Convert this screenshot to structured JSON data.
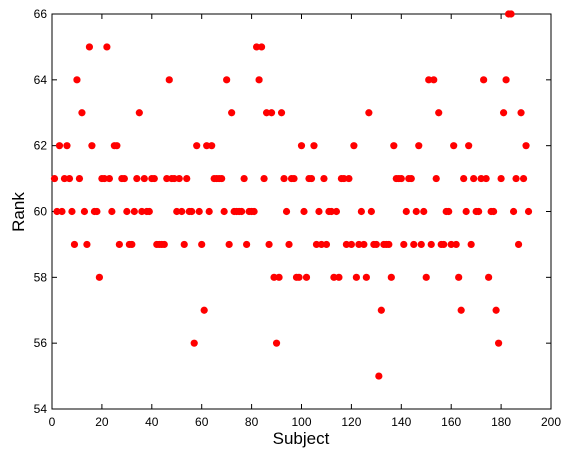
{
  "chart_data": {
    "type": "scatter",
    "x_label": "Subject",
    "y_label": "Rank",
    "color": "#ff0000",
    "x": [
      1,
      2,
      3,
      4,
      5,
      6,
      7,
      8,
      9,
      10,
      11,
      12,
      13,
      14,
      15,
      16,
      17,
      18,
      19,
      20,
      21,
      22,
      23,
      24,
      25,
      26,
      27,
      28,
      29,
      30,
      31,
      32,
      33,
      34,
      35,
      36,
      37,
      38,
      39,
      40,
      41,
      42,
      43,
      44,
      45,
      46,
      47,
      48,
      49,
      50,
      51,
      52,
      53,
      54,
      55,
      56,
      57,
      58,
      59,
      60,
      61,
      62,
      63,
      64,
      65,
      66,
      67,
      68,
      69,
      70,
      71,
      72,
      73,
      74,
      75,
      76,
      77,
      78,
      79,
      80,
      81,
      82,
      83,
      84,
      85,
      86,
      87,
      88,
      89,
      90,
      91,
      92,
      93,
      94,
      95,
      96,
      97,
      98,
      99,
      100,
      101,
      102,
      103,
      104,
      105,
      106,
      107,
      108,
      109,
      110,
      111,
      112,
      113,
      114,
      115,
      116,
      117,
      118,
      119,
      120,
      121,
      122,
      123,
      124,
      125,
      126,
      127,
      128,
      129,
      130,
      131,
      132,
      133,
      134,
      135,
      136,
      137,
      138,
      139,
      140,
      141,
      142,
      143,
      144,
      145,
      146,
      147,
      148,
      149,
      150,
      151,
      152,
      153,
      154,
      155,
      156,
      157,
      158,
      159,
      160,
      161,
      162,
      163,
      164,
      165,
      166,
      167,
      168,
      169,
      170,
      171,
      172,
      173,
      174,
      175,
      176,
      177,
      178,
      179,
      180,
      181,
      182,
      183,
      184,
      185,
      186,
      187,
      188,
      189,
      190,
      191
    ],
    "values": [
      61,
      60,
      62,
      60,
      61,
      62,
      61,
      60,
      59,
      64,
      61,
      63,
      60,
      59,
      65,
      62,
      60,
      60,
      58,
      61,
      61,
      65,
      61,
      60,
      62,
      62,
      59,
      61,
      61,
      60,
      59,
      59,
      60,
      61,
      63,
      60,
      61,
      60,
      60,
      61,
      61,
      59,
      59,
      59,
      59,
      61,
      64,
      61,
      61,
      60,
      61,
      60,
      59,
      61,
      60,
      60,
      56,
      62,
      60,
      59,
      57,
      62,
      60,
      62,
      61,
      61,
      61,
      61,
      60,
      64,
      59,
      63,
      60,
      60,
      60,
      60,
      61,
      59,
      60,
      60,
      60,
      65,
      64,
      65,
      61,
      63,
      59,
      63,
      58,
      56,
      58,
      63,
      61,
      60,
      59,
      61,
      61,
      58,
      58,
      62,
      60,
      58,
      61,
      61,
      62,
      59,
      60,
      59,
      61,
      59,
      60,
      60,
      58,
      60,
      58,
      61,
      61,
      59,
      61,
      59,
      62,
      58,
      59,
      60,
      59,
      58,
      63,
      60,
      59,
      59,
      55,
      57,
      59,
      59,
      59,
      58,
      62,
      61,
      61,
      61,
      59,
      60,
      61,
      61,
      59,
      60,
      62,
      59,
      60,
      58,
      64,
      59,
      64,
      61,
      63,
      59,
      59,
      60,
      60,
      59,
      62,
      59,
      58,
      57,
      61,
      60,
      62,
      59,
      61,
      60,
      60,
      61,
      64,
      61,
      58,
      60,
      60,
      57,
      56,
      61,
      63,
      64,
      66,
      66,
      60,
      61,
      59,
      63,
      61,
      62,
      60
    ],
    "xlim": [
      0,
      200
    ],
    "xticks": [
      0,
      20,
      40,
      60,
      80,
      100,
      120,
      140,
      160,
      180,
      200
    ],
    "ylim": [
      54,
      66
    ],
    "yticks": [
      54,
      56,
      58,
      60,
      62,
      64,
      66
    ]
  }
}
